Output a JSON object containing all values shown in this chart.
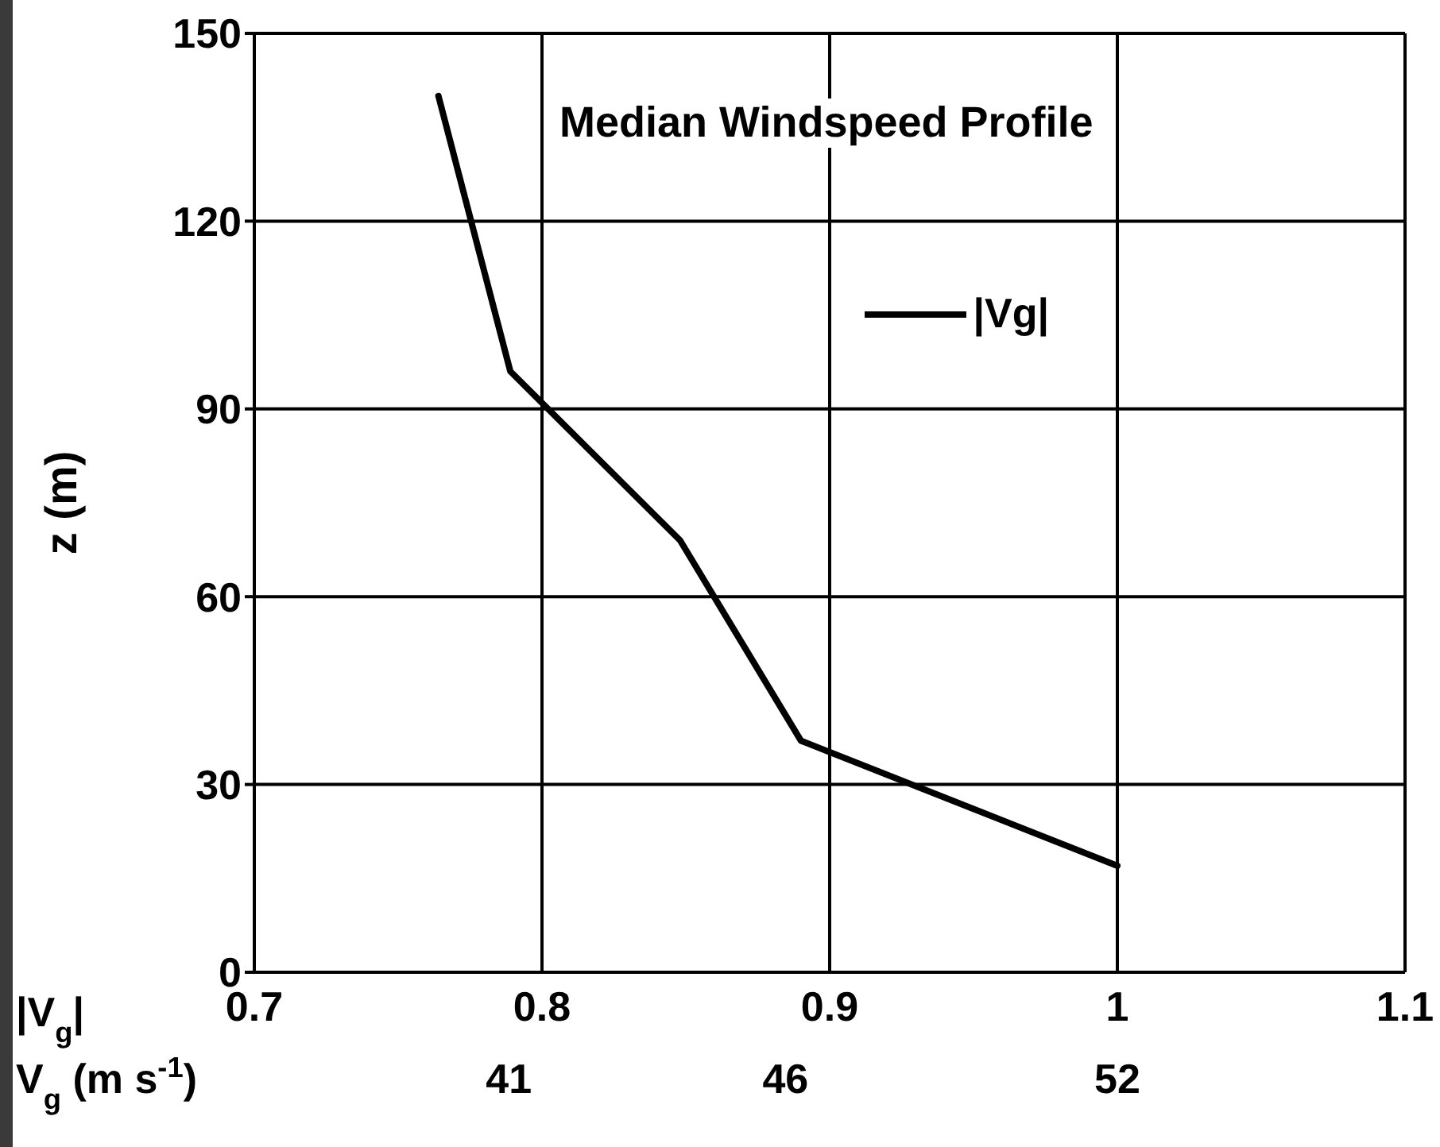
{
  "chart_data": {
    "type": "line",
    "title": "Median Windspeed Profile",
    "xlabel": "|V$_{g}$|",
    "x2label": "V$_{g}$ (m s$^{-1}$)",
    "ylabel": "z (m)",
    "x": [
      0.764,
      0.789,
      0.848,
      0.89,
      1.0
    ],
    "series": [
      {
        "name": "|Vg|",
        "color": "#000000",
        "values": [
          140,
          96,
          69,
          37,
          17
        ]
      }
    ],
    "xlim": [
      0.7,
      1.1
    ],
    "xticks": [
      0.7,
      0.8,
      0.9,
      1,
      1.1
    ],
    "x2lim": [
      36.4,
      57.2
    ],
    "x2ticks": [
      41,
      46,
      52
    ],
    "ylim": [
      0,
      150
    ],
    "yticks": [
      0,
      30,
      60,
      90,
      120,
      150
    ],
    "grid": true,
    "legend": "top right"
  }
}
